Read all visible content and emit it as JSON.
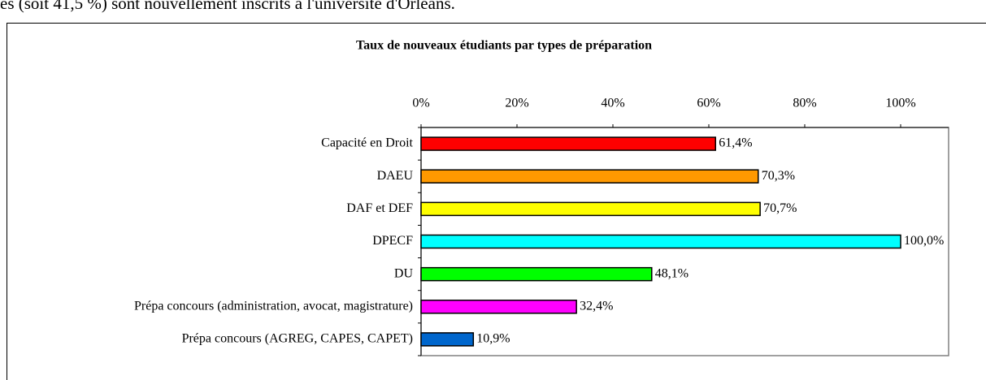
{
  "header_text": "es (soit 41,5 %) sont nouvellement inscrits à l'université d'Orléans.",
  "chart_data": {
    "type": "hbar",
    "title": "Taux de nouveaux étudiants par types de préparation",
    "categories": [
      "Capacité en Droit",
      "DAEU",
      "DAF et DEF",
      "DPECF",
      "DU",
      "Prépa concours (administration, avocat, magistrature)",
      "Prépa concours (AGREG, CAPES, CAPET)"
    ],
    "values": [
      61.4,
      70.3,
      70.7,
      100.0,
      48.1,
      32.4,
      10.9
    ],
    "value_labels": [
      "61,4%",
      "70,3%",
      "70,7%",
      "100,0%",
      "48,1%",
      "32,4%",
      "10,9%"
    ],
    "colors": [
      "#ff0000",
      "#ff9900",
      "#ffff00",
      "#00ffff",
      "#00ff00",
      "#ff00ff",
      "#0066cc"
    ],
    "xlim": [
      0,
      110
    ],
    "xticks": [
      {
        "value": 0,
        "label": "0%"
      },
      {
        "value": 20,
        "label": "20%"
      },
      {
        "value": 40,
        "label": "40%"
      },
      {
        "value": 60,
        "label": "60%"
      },
      {
        "value": 80,
        "label": "80%"
      },
      {
        "value": 100,
        "label": "100%"
      }
    ]
  }
}
